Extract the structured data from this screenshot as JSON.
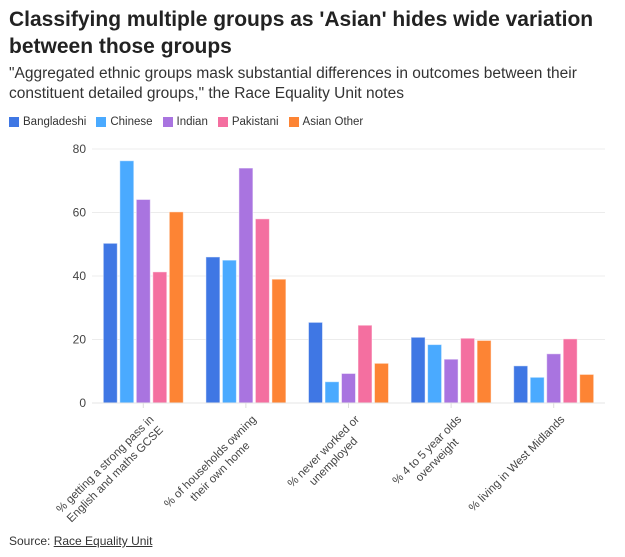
{
  "title": "Classifying multiple groups as 'Asian' hides wide variation between those groups",
  "subtitle": "\"Aggregated ethnic groups mask substantial differences in outcomes between their constituent detailed groups,\" the Race Equality Unit notes",
  "source": {
    "label": "Source:",
    "link": "Race Equality Unit"
  },
  "chart_data": {
    "type": "bar",
    "categories": [
      [
        "% getting a strong pass in",
        "English and maths GCSE"
      ],
      [
        "% of households owning",
        "their own home"
      ],
      [
        "% never worked or",
        "unemployed"
      ],
      [
        "% 4 to 5 year olds",
        "overweight"
      ],
      [
        "% living in West Midlands"
      ]
    ],
    "series": [
      {
        "name": "Bangladeshi",
        "color": "#3f77e4",
        "values": [
          50.3,
          46,
          25.4,
          20.7,
          11.7
        ]
      },
      {
        "name": "Chinese",
        "color": "#4aaaff",
        "values": [
          76.3,
          45,
          6.7,
          18.4,
          8.1
        ]
      },
      {
        "name": "Indian",
        "color": "#a974e0",
        "values": [
          64.1,
          74,
          9.3,
          13.8,
          15.5
        ]
      },
      {
        "name": "Pakistani",
        "color": "#f46fa0",
        "values": [
          41.3,
          58,
          24.5,
          20.4,
          20.2
        ]
      },
      {
        "name": "Asian Other",
        "color": "#fd8434",
        "values": [
          60.2,
          39,
          12.5,
          19.7,
          9.0
        ]
      }
    ],
    "ylim": [
      0,
      80
    ],
    "yticks": [
      "0",
      "20",
      "40",
      "60",
      "80"
    ],
    "grid": true,
    "legend": "top-left"
  }
}
